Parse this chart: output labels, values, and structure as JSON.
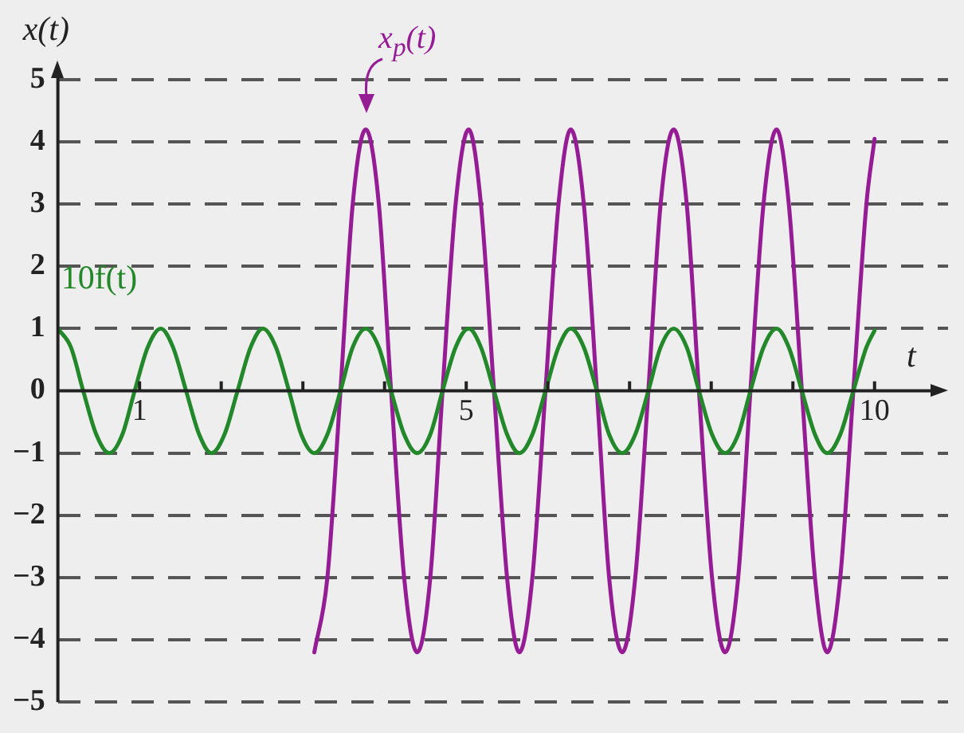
{
  "chart_data": {
    "type": "line",
    "xlabel": "t",
    "ylabel": "x(t)",
    "x": [
      0,
      0.16,
      0.31,
      0.47,
      0.63,
      0.79,
      0.94,
      1.1,
      1.26,
      1.41,
      1.57,
      1.73,
      1.88,
      2.04,
      2.2,
      2.36,
      2.51,
      2.67,
      2.83,
      2.98,
      3.14,
      3.3,
      3.46,
      3.61,
      3.77,
      3.93,
      4.08,
      4.24,
      4.4,
      4.56,
      4.71,
      4.87,
      5.03,
      5.18,
      5.34,
      5.5,
      5.65,
      5.81,
      5.97,
      6.13,
      6.28,
      6.44,
      6.6,
      6.75,
      6.91,
      7.07,
      7.23,
      7.38,
      7.54,
      7.7,
      7.85,
      8.01,
      8.17,
      8.33,
      8.48,
      8.64,
      8.8,
      8.95,
      9.11,
      9.27,
      9.42,
      9.58,
      9.74,
      9.9,
      10
    ],
    "series": [
      {
        "name": "10f(t)",
        "color": "#22882a",
        "values": [
          1,
          0.7,
          0,
          -0.7,
          -1,
          -0.7,
          0,
          0.7,
          1,
          0.7,
          0,
          -0.7,
          -1,
          -0.7,
          0,
          0.7,
          1,
          0.7,
          0,
          -0.7,
          -1,
          -0.7,
          0,
          0.7,
          1,
          0.7,
          0,
          -0.7,
          -1,
          -0.7,
          0,
          0.7,
          1,
          0.7,
          0,
          -0.7,
          -1,
          -0.7,
          0,
          0.7,
          1,
          0.7,
          0,
          -0.7,
          -1,
          -0.7,
          0,
          0.7,
          1,
          0.7,
          0,
          -0.7,
          -1,
          -0.7,
          0,
          0.7,
          1,
          0.7,
          0,
          -0.7,
          -1,
          -0.7,
          0,
          0.7,
          0.97
        ]
      },
      {
        "name": "x$_{p}$(t)",
        "color": "#951c95",
        "values": [
          null,
          null,
          null,
          null,
          null,
          null,
          null,
          null,
          null,
          null,
          null,
          null,
          null,
          null,
          null,
          null,
          null,
          null,
          null,
          null,
          -4.2,
          -3,
          0,
          3,
          4.2,
          3,
          0,
          -3,
          -4.2,
          -3,
          0,
          3,
          4.2,
          3,
          0,
          -3,
          -4.2,
          -3,
          0,
          3,
          4.2,
          3,
          0,
          -3,
          -4.2,
          -3,
          0,
          3,
          4.2,
          3,
          0,
          -3,
          -4.2,
          -3,
          0,
          3,
          4.2,
          3,
          0,
          -3,
          -4.2,
          -3,
          0,
          3,
          4.05
        ]
      }
    ],
    "xlim": [
      0,
      10.9
    ],
    "xticks": [
      1,
      {
        "value": 2,
        "label": null
      },
      {
        "value": 3,
        "label": null
      },
      {
        "value": 4,
        "label": null
      },
      5,
      {
        "value": 6,
        "label": null
      },
      {
        "value": 7,
        "label": null
      },
      {
        "value": 8,
        "label": null
      },
      {
        "value": 9,
        "label": null
      },
      10
    ],
    "ylim": [
      -5,
      5
    ],
    "yticks": [
      -5,
      -4,
      -3,
      -2,
      -1,
      0,
      1,
      2,
      3,
      4,
      5
    ],
    "grid": "y",
    "legend": false,
    "marker": "none",
    "line_style": "solid"
  }
}
